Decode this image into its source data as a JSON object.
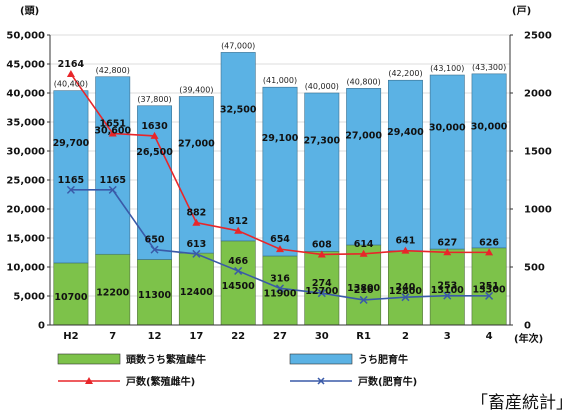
{
  "chart_data": {
    "type": "bar",
    "left_unit": "(頭)",
    "right_unit": "(戸)",
    "x_unit": "(年次)",
    "categories": [
      "H2",
      "7",
      "12",
      "17",
      "22",
      "27",
      "30",
      "R1",
      "2",
      "3",
      "4"
    ],
    "totals": [
      "(40,400)",
      "(42,800)",
      "(37,800)",
      "(39,400)",
      "(47,000)",
      "(41,000)",
      "(40,000)",
      "(40,800)",
      "(42,200)",
      "(43,100)",
      "(43,300)"
    ],
    "y_left_ticks": [
      "0",
      "5,000",
      "10,000",
      "15,000",
      "20,000",
      "25,000",
      "30,000",
      "35,000",
      "40,000",
      "45,000",
      "50,000"
    ],
    "y_right_ticks": [
      "0",
      "500",
      "1000",
      "1500",
      "2000",
      "2500"
    ],
    "ylim_left": [
      0,
      50000
    ],
    "ylim_right": [
      0,
      2500
    ],
    "series": [
      {
        "name": "頭数うち繁殖雌牛",
        "type": "bar",
        "color": "#7dc24a",
        "values": [
          10700,
          12200,
          11300,
          12400,
          14500,
          11900,
          12700,
          13800,
          12800,
          13100,
          13300
        ],
        "labels": [
          "10700",
          "12200",
          "11300",
          "12400",
          "14500",
          "11900",
          "12700",
          "13800",
          "12800",
          "13100",
          "13300"
        ]
      },
      {
        "name": "うち肥育牛",
        "type": "bar",
        "color": "#5bb2e4",
        "values": [
          29700,
          30600,
          26500,
          27000,
          32500,
          29100,
          27300,
          27000,
          29400,
          30000,
          30000
        ],
        "labels": [
          "29,700",
          "30,600",
          "26,500",
          "27,000",
          "32,500",
          "29,100",
          "27,300",
          "27,000",
          "29,400",
          "30,000",
          "30,000"
        ]
      },
      {
        "name": "戸数(繁殖雌牛)",
        "type": "line",
        "color": "#e8262a",
        "values": [
          2164,
          1651,
          1630,
          882,
          812,
          654,
          608,
          614,
          641,
          627,
          626
        ],
        "labels": [
          "2164",
          "1651",
          "1630",
          "882",
          "812",
          "654",
          "608",
          "614",
          "641",
          "627",
          "626"
        ]
      },
      {
        "name": "戸数(肥育牛)",
        "type": "line",
        "color": "#3a5aa8",
        "values": [
          1165,
          1165,
          650,
          613,
          466,
          316,
          274,
          216,
          240,
          253,
          251
        ],
        "labels": [
          "1165",
          "1165",
          "650",
          "613",
          "466",
          "316",
          "274",
          "216",
          "240",
          "253",
          "251"
        ]
      }
    ],
    "source": "「畜産統計」"
  }
}
